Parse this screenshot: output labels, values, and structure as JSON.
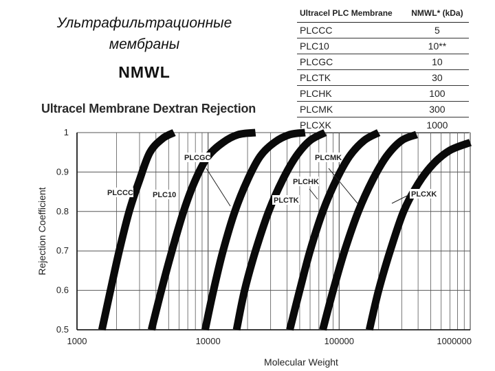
{
  "slide": {
    "heading_line1": "Ультрафильтрационные",
    "heading_line2": "мембраны",
    "subheading": "NMWL"
  },
  "table": {
    "headers": [
      "Ultracel PLC Membrane",
      "NMWL* (kDa)"
    ],
    "rows": [
      {
        "membrane": "PLCCC",
        "nmwl": "5"
      },
      {
        "membrane": "PLC10",
        "nmwl": "10**"
      },
      {
        "membrane": "PLCGC",
        "nmwl": "10"
      },
      {
        "membrane": "PLCTK",
        "nmwl": "30"
      },
      {
        "membrane": "PLCHK",
        "nmwl": "100"
      },
      {
        "membrane": "PLCMK",
        "nmwl": "300"
      },
      {
        "membrane": "PLCXK",
        "nmwl": "1000"
      }
    ]
  },
  "chart_data": {
    "type": "line",
    "title": "Ultracel Membrane Dextran Rejection",
    "xlabel": "Molecular Weight",
    "ylabel": "Rejection Coefficient",
    "x_scale": "log",
    "xlim": [
      1000,
      1000000
    ],
    "ylim": [
      0.5,
      1
    ],
    "x_ticks": [
      {
        "value": 1000,
        "label": "1000"
      },
      {
        "value": 10000,
        "label": "10000"
      },
      {
        "value": 100000,
        "label": "100000"
      },
      {
        "value": 1000000,
        "label": "1000000"
      }
    ],
    "y_ticks": [
      {
        "value": 1,
        "label": "1"
      },
      {
        "value": 0.9,
        "label": "0.9"
      },
      {
        "value": 0.8,
        "label": "0.8"
      },
      {
        "value": 0.7,
        "label": "0.7"
      },
      {
        "value": 0.6,
        "label": "0.6"
      },
      {
        "value": 0.5,
        "label": "0.5"
      }
    ],
    "grid": true,
    "series": [
      {
        "name": "PLCCC",
        "x": [
          1550,
          1800,
          2100,
          2500,
          3000,
          3600,
          4500,
          5500
        ],
        "y": [
          0.5,
          0.6,
          0.7,
          0.8,
          0.88,
          0.95,
          0.985,
          1.0
        ]
      },
      {
        "name": "PLC10",
        "x": [
          3700,
          4400,
          5300,
          6500,
          8000,
          10000,
          13000,
          17000,
          23000
        ],
        "y": [
          0.5,
          0.6,
          0.7,
          0.8,
          0.88,
          0.94,
          0.975,
          0.995,
          1.0
        ]
      },
      {
        "name": "PLCGC",
        "x": [
          9500,
          11000,
          13000,
          16000,
          20000,
          25000,
          32000,
          42000,
          55000
        ],
        "y": [
          0.5,
          0.6,
          0.7,
          0.8,
          0.88,
          0.94,
          0.975,
          0.995,
          1.0
        ]
      },
      {
        "name": "PLCTK",
        "x": [
          16500,
          19000,
          23000,
          29000,
          37000,
          47000,
          60000,
          78000
        ],
        "y": [
          0.5,
          0.6,
          0.7,
          0.8,
          0.88,
          0.94,
          0.98,
          1.0
        ]
      },
      {
        "name": "PLCHK",
        "x": [
          42000,
          50000,
          60000,
          75000,
          95000,
          120000,
          155000,
          200000
        ],
        "y": [
          0.5,
          0.6,
          0.7,
          0.8,
          0.88,
          0.94,
          0.98,
          1.0
        ]
      },
      {
        "name": "PLCMK",
        "x": [
          75000,
          90000,
          110000,
          140000,
          180000,
          230000,
          300000,
          390000
        ],
        "y": [
          0.5,
          0.6,
          0.7,
          0.8,
          0.88,
          0.94,
          0.98,
          0.995
        ]
      },
      {
        "name": "PLCXK",
        "x": [
          170000,
          200000,
          245000,
          310000,
          400000,
          520000,
          700000,
          1000000
        ],
        "y": [
          0.5,
          0.6,
          0.7,
          0.8,
          0.87,
          0.92,
          0.955,
          0.975
        ]
      }
    ],
    "annotations": [
      {
        "text": "PLCCC",
        "series": "PLCCC"
      },
      {
        "text": "PLC10",
        "series": "PLC10"
      },
      {
        "text": "PLCGC",
        "series": "PLCGC"
      },
      {
        "text": "PLCTK",
        "series": "PLCTK"
      },
      {
        "text": "PLCHK",
        "series": "PLCHK"
      },
      {
        "text": "PLCMK",
        "series": "PLCMK"
      },
      {
        "text": "PLCXK",
        "series": "PLCXK"
      }
    ],
    "line_color": "#0a0a0a",
    "grid_color": "#555555"
  }
}
